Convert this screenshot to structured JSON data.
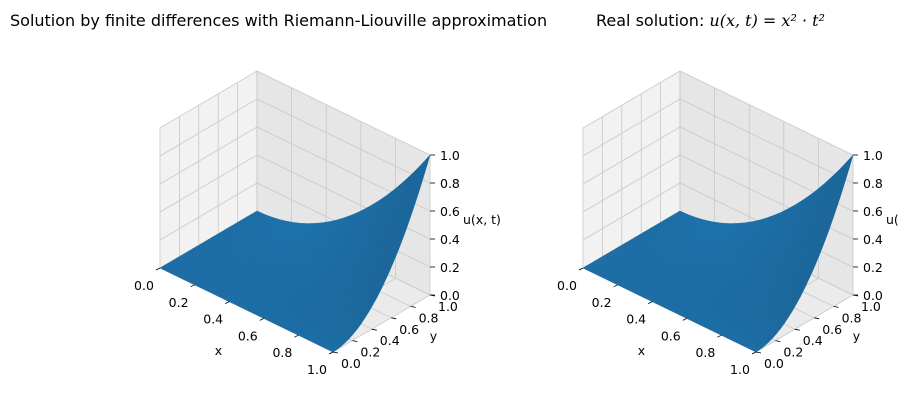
{
  "chart_data": [
    {
      "type": "surface3d",
      "title": "Solution by finite differences with Riemann-Liouville approximation",
      "xlabel": "x",
      "ylabel": "y",
      "zlabel": "u(x, t)",
      "xlim": [
        0,
        1
      ],
      "ylim": [
        0,
        1
      ],
      "zlim": [
        0,
        1
      ],
      "xticks": [
        "0.0",
        "0.2",
        "0.4",
        "0.6",
        "0.8",
        "1.0"
      ],
      "yticks": [
        "0.0",
        "0.2",
        "0.4",
        "0.6",
        "0.8",
        "1.0"
      ],
      "zticks": [
        "0.0",
        "0.2",
        "0.4",
        "0.6",
        "0.8",
        "1.0"
      ],
      "surface": "u = x^2 * t^2 on 0 ≤ x, t ≤ 1",
      "corner_values": [
        {
          "x": 0,
          "y": 0,
          "z": 0
        },
        {
          "x": 1,
          "y": 0,
          "z": 0
        },
        {
          "x": 0,
          "y": 1,
          "z": 0
        },
        {
          "x": 1,
          "y": 1,
          "z": 1
        }
      ],
      "grid": true,
      "color": "#1f77b4"
    },
    {
      "type": "surface3d",
      "title_prefix": "Real solution: ",
      "title_math": "u(x, t) = x² · t²",
      "xlabel": "x",
      "ylabel": "y",
      "zlabel": "u(",
      "xlim": [
        0,
        1
      ],
      "ylim": [
        0,
        1
      ],
      "zlim": [
        0,
        1
      ],
      "xticks": [
        "0.0",
        "0.2",
        "0.4",
        "0.6",
        "0.8",
        "1.0"
      ],
      "yticks": [
        "0.0",
        "0.2",
        "0.4",
        "0.6",
        "0.8",
        "1.0"
      ],
      "zticks": [
        "0.0",
        "0.2",
        "0.4",
        "0.6",
        "0.8",
        "1.0"
      ],
      "surface": "u = x^2 * t^2 on 0 ≤ x, t ≤ 1",
      "corner_values": [
        {
          "x": 0,
          "y": 0,
          "z": 0
        },
        {
          "x": 1,
          "y": 0,
          "z": 0
        },
        {
          "x": 0,
          "y": 1,
          "z": 0
        },
        {
          "x": 1,
          "y": 1,
          "z": 1
        }
      ],
      "grid": true,
      "color": "#1f77b4"
    }
  ]
}
